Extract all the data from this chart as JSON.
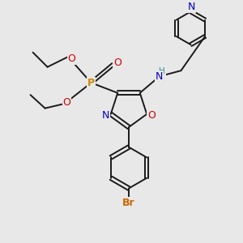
{
  "bg_color": "#e8e8e8",
  "bond_color": "#1a1a1a",
  "N_color": "#0000cc",
  "O_color": "#cc0000",
  "P_color": "#cc8800",
  "Br_color": "#cc6600",
  "H_color": "#2a9090",
  "figsize": [
    3.0,
    3.0
  ],
  "dpi": 100,
  "xlim": [
    0,
    10
  ],
  "ylim": [
    0,
    10
  ]
}
